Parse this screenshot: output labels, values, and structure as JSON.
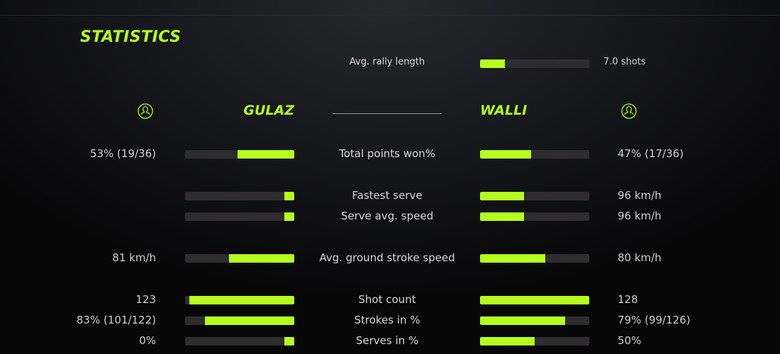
{
  "title": "STATISTICS",
  "accent_color": "#b4ff1e",
  "players": {
    "left": {
      "name": "GULAZ",
      "icon": "user-circle-icon"
    },
    "right": {
      "name": "WALLI",
      "icon": "user-circle-icon"
    }
  },
  "rally": {
    "label": "Avg. rally length",
    "value": "7.0 shots",
    "fraction": 0.23
  },
  "stats": [
    {
      "label": "Total points won%",
      "left": "53% (19/36)",
      "right": "47% (17/36)",
      "left_fraction": 0.52,
      "right_fraction": 0.47
    },
    {
      "label": "Fastest serve",
      "left": "",
      "right": "96 km/h",
      "left_fraction": 0.09,
      "right_fraction": 0.4
    },
    {
      "label": "Serve avg. speed",
      "left": "",
      "right": "96 km/h",
      "left_fraction": 0.09,
      "right_fraction": 0.4
    },
    {
      "label": "Avg. ground stroke speed",
      "left": "81 km/h",
      "right": "80 km/h",
      "left_fraction": 0.6,
      "right_fraction": 0.6
    },
    {
      "label": "Shot count",
      "left": "123",
      "right": "128",
      "left_fraction": 0.96,
      "right_fraction": 1.0
    },
    {
      "label": "Strokes in %",
      "left": "83% (101/122)",
      "right": "79% (99/126)",
      "left_fraction": 0.82,
      "right_fraction": 0.78
    },
    {
      "label": "Serves in %",
      "left": "0%",
      "right": "50%",
      "left_fraction": 0.09,
      "right_fraction": 0.5
    }
  ]
}
